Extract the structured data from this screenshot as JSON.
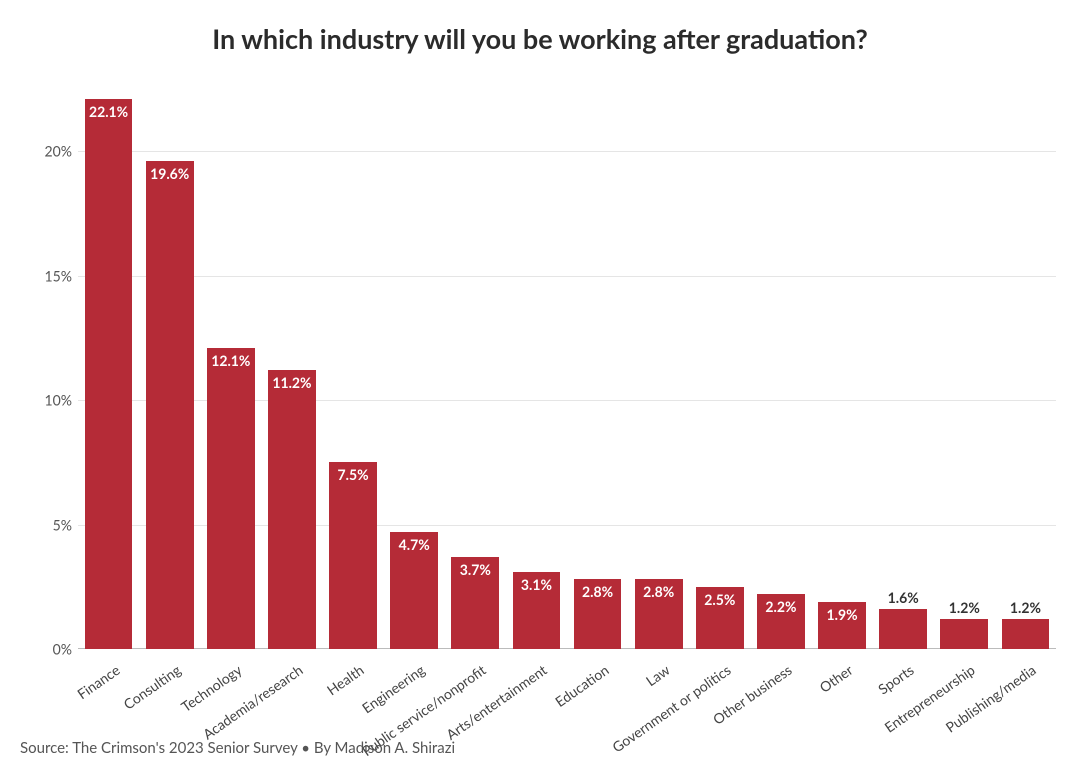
{
  "chart": {
    "type": "bar",
    "title": "In which industry will you be working after graduation?",
    "title_fontsize": 27,
    "title_color": "#2b2b2b",
    "background_color": "#ffffff",
    "bar_color": "#b52b37",
    "grid_color": "#e5e5e5",
    "axis_color": "#bbbbbb",
    "axis_label_color": "#555555",
    "xlabel_color": "#444444",
    "ylabel_fontsize": 14,
    "xlabel_fontsize": 14,
    "value_label_fontsize": 14,
    "xlabel_rotation_deg": -35,
    "ylim": [
      0,
      22.5
    ],
    "ytick_values": [
      0,
      5,
      10,
      15,
      20
    ],
    "ytick_labels": [
      "0%",
      "5%",
      "10%",
      "15%",
      "20%"
    ],
    "bar_width_ratio": 0.78,
    "value_label_threshold_for_outside": 1.6,
    "categories": [
      "Finance",
      "Consulting",
      "Technology",
      "Academia/research",
      "Health",
      "Engineering",
      "Public service/nonprofit",
      "Arts/entertainment",
      "Education",
      "Law",
      "Government or politics",
      "Other business",
      "Other",
      "Sports",
      "Entrepreneurship",
      "Publishing/media"
    ],
    "values": [
      22.1,
      19.6,
      12.1,
      11.2,
      7.5,
      4.7,
      3.7,
      3.1,
      2.8,
      2.8,
      2.5,
      2.2,
      1.9,
      1.6,
      1.2,
      1.2
    ],
    "value_labels": [
      "22.1%",
      "19.6%",
      "12.1%",
      "11.2%",
      "7.5%",
      "4.7%",
      "3.7%",
      "3.1%",
      "2.8%",
      "2.8%",
      "2.5%",
      "2.2%",
      "1.9%",
      "1.6%",
      "1.2%",
      "1.2%"
    ],
    "value_label_inside_color": "#ffffff",
    "value_label_outside_color": "#333333"
  },
  "source_line": "Source: The Crimson's 2023 Senior Survey • By Madison A. Shirazi"
}
